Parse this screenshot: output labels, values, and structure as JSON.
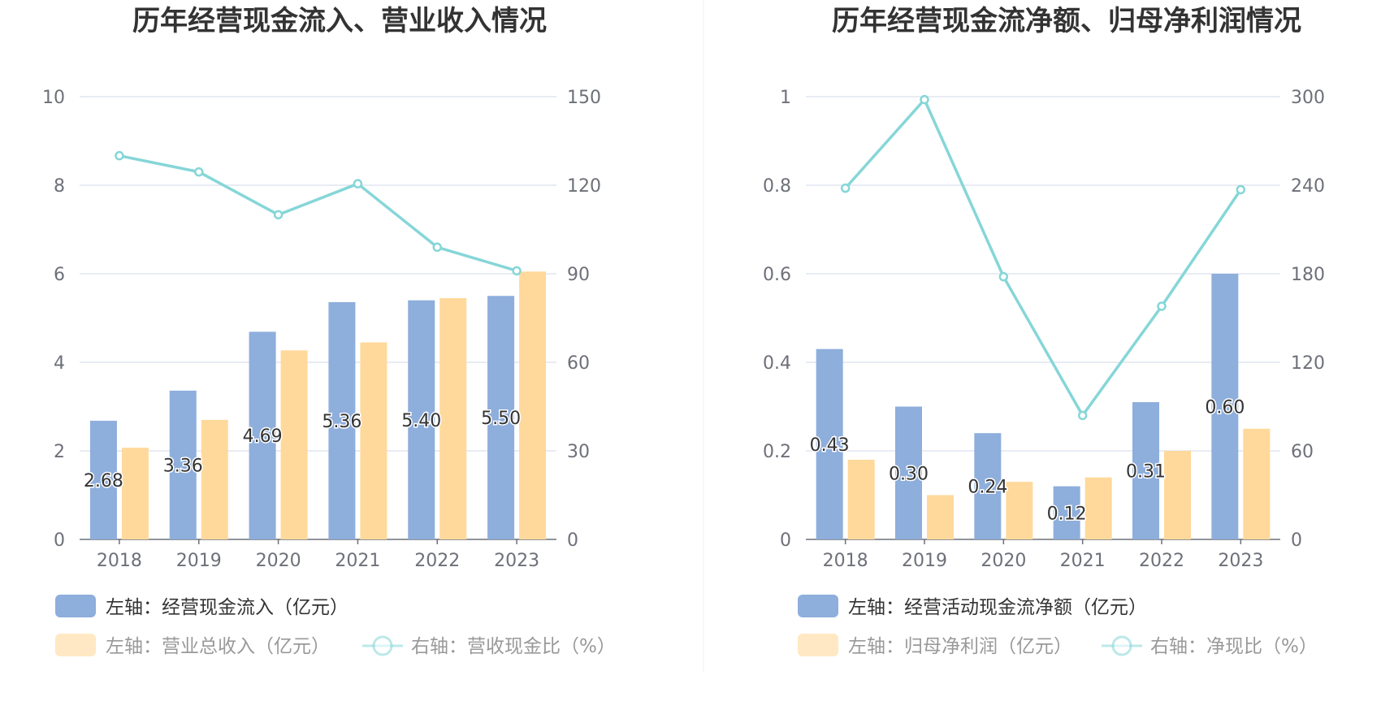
{
  "colors": {
    "blue": "#8eaedc",
    "orange": "#ffd99b",
    "line": "#86d6d8",
    "grid": "#e0e6f1",
    "axis": "#6e7079"
  },
  "chart_data": [
    {
      "type": "bar",
      "title": "历年经营现金流入、营业收入情况",
      "categories": [
        "2018",
        "2019",
        "2020",
        "2021",
        "2022",
        "2023"
      ],
      "left_axis": {
        "ylim": [
          0,
          10
        ],
        "ticks": [
          "0",
          "2",
          "4",
          "6",
          "8",
          "10"
        ]
      },
      "right_axis": {
        "ylim": [
          0,
          150
        ],
        "ticks": [
          "0",
          "30",
          "60",
          "90",
          "120",
          "150"
        ]
      },
      "series": [
        {
          "name": "左轴：经营现金流入（亿元）",
          "axis": "left",
          "kind": "bar",
          "color_key": "blue",
          "values": [
            2.68,
            3.36,
            4.69,
            5.36,
            5.4,
            5.5
          ],
          "labels": [
            "2.68",
            "3.36",
            "4.69",
            "5.36",
            "5.40",
            "5.50"
          ]
        },
        {
          "name": "左轴：营业总收入（亿元）",
          "axis": "left",
          "kind": "bar",
          "color_key": "orange",
          "values": [
            2.07,
            2.7,
            4.27,
            4.45,
            5.45,
            6.05
          ]
        },
        {
          "name": "右轴：营收现金比（%）",
          "axis": "right",
          "kind": "line",
          "color_key": "line",
          "values": [
            130,
            124.5,
            110,
            120.5,
            99,
            91
          ]
        }
      ]
    },
    {
      "type": "bar",
      "title": "历年经营现金流净额、归母净利润情况",
      "categories": [
        "2018",
        "2019",
        "2020",
        "2021",
        "2022",
        "2023"
      ],
      "left_axis": {
        "ylim": [
          0,
          1
        ],
        "ticks": [
          "0",
          "0.2",
          "0.4",
          "0.6",
          "0.8",
          "1"
        ]
      },
      "right_axis": {
        "ylim": [
          0,
          300
        ],
        "ticks": [
          "0",
          "60",
          "120",
          "180",
          "240",
          "300"
        ]
      },
      "series": [
        {
          "name": "左轴：经营活动现金流净额（亿元）",
          "axis": "left",
          "kind": "bar",
          "color_key": "blue",
          "values": [
            0.43,
            0.3,
            0.24,
            0.12,
            0.31,
            0.6
          ],
          "labels": [
            "0.43",
            "0.30",
            "0.24",
            "0.12",
            "0.31",
            "0.60"
          ]
        },
        {
          "name": "左轴：归母净利润（亿元）",
          "axis": "left",
          "kind": "bar",
          "color_key": "orange",
          "values": [
            0.18,
            0.1,
            0.13,
            0.14,
            0.2,
            0.25
          ]
        },
        {
          "name": "右轴：净现比（%）",
          "axis": "right",
          "kind": "line",
          "color_key": "line",
          "values": [
            238,
            298,
            178,
            84,
            158,
            237
          ]
        }
      ]
    }
  ]
}
